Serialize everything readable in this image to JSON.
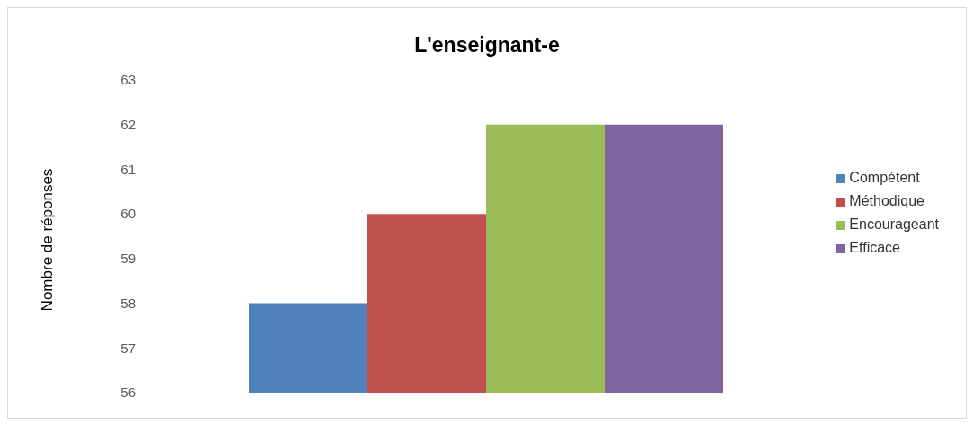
{
  "chart_data": {
    "type": "bar",
    "title": "L'enseignant-e",
    "ylabel": "Nombre de réponses",
    "categories": [
      null
    ],
    "series": [
      {
        "name": "Compétent",
        "color": "#4f81bd",
        "values": [
          58
        ]
      },
      {
        "name": "Méthodique",
        "color": "#c0504d",
        "values": [
          60
        ]
      },
      {
        "name": "Encourageant",
        "color": "#9bbb59",
        "values": [
          62
        ]
      },
      {
        "name": "Efficace",
        "color": "#8064a2",
        "values": [
          62
        ]
      }
    ],
    "ylim": [
      56,
      63
    ],
    "yticks": [
      56,
      57,
      58,
      59,
      60,
      61,
      62,
      63
    ],
    "grid": false,
    "legend": "right"
  }
}
